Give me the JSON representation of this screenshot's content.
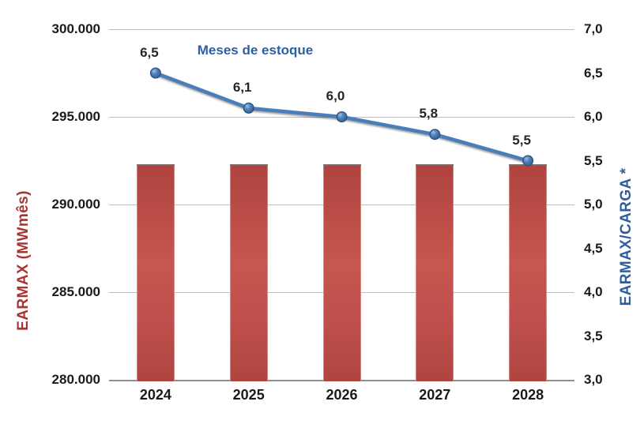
{
  "chart_data": {
    "type": "combo-bar-line",
    "categories": [
      "2024",
      "2025",
      "2026",
      "2027",
      "2028"
    ],
    "series": [
      {
        "name": "EARMAX",
        "type": "bar",
        "axis": "left",
        "values": [
          292300,
          292300,
          292300,
          292300,
          292300
        ],
        "color": "#c0504d"
      },
      {
        "name": "Meses de estoque",
        "type": "line",
        "axis": "right",
        "values": [
          6.5,
          6.1,
          6.0,
          5.8,
          5.5
        ],
        "labels": [
          "6,5",
          "6,1",
          "6,0",
          "5,8",
          "5,5"
        ],
        "color": "#4a7ebb",
        "marker_fill": "#4f81bd",
        "marker_stroke": "#2c5380"
      }
    ],
    "left_axis": {
      "title": "EARMAX (MWmês)",
      "title_color": "#a8342f",
      "min": 280000,
      "max": 300000,
      "step": 5000,
      "tick_labels": [
        "300.000",
        "295.000",
        "290.000",
        "285.000",
        "280.000"
      ]
    },
    "right_axis": {
      "title": "EARMAX/CARGA *",
      "title_color": "#2e5e9e",
      "min": 3.0,
      "max": 7.0,
      "step": 0.5,
      "tick_labels": [
        "7,0",
        "6,5",
        "6,0",
        "5,5",
        "5,0",
        "4,5",
        "4,0",
        "3,5",
        "3,0"
      ]
    },
    "series_label": {
      "text": "Meses de estoque",
      "color": "#2d5fa3"
    },
    "grid": "horizontal-major-only",
    "legend": "none"
  }
}
